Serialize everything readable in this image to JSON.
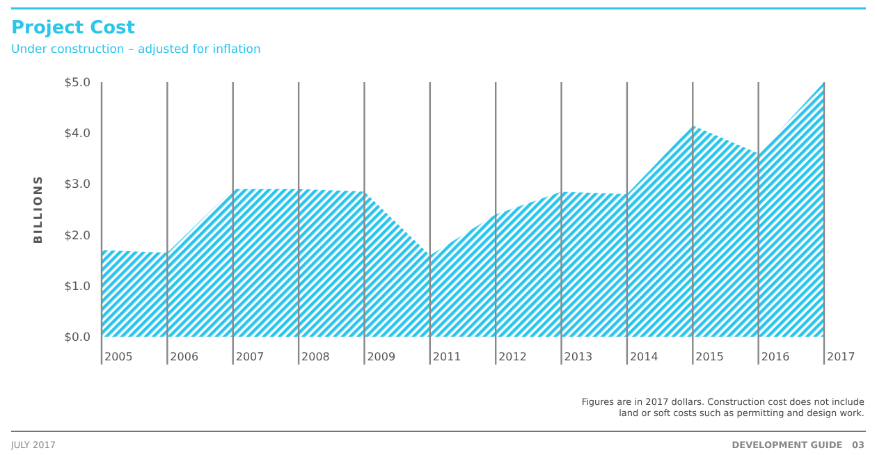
{
  "chart_data": {
    "type": "area",
    "title": "Project Cost",
    "subtitle": "Under construction – adjusted for inflation",
    "ylabel": "BILLIONS",
    "categories": [
      "2005",
      "2006",
      "2007",
      "2008",
      "2009",
      "2011",
      "2012",
      "2013",
      "2014",
      "2015",
      "2016",
      "2017"
    ],
    "values": [
      1.7,
      1.65,
      2.9,
      2.9,
      2.85,
      1.6,
      2.4,
      2.85,
      2.8,
      4.15,
      3.6,
      5.0
    ],
    "color": "#29c5ec",
    "ylim": [
      0,
      5
    ],
    "yticks": [
      {
        "value": 0,
        "label": "$0.0"
      },
      {
        "value": 1,
        "label": "$1.0"
      },
      {
        "value": 2,
        "label": "$2.0"
      },
      {
        "value": 3,
        "label": "$3.0"
      },
      {
        "value": 4,
        "label": "$4.0"
      },
      {
        "value": 5,
        "label": "$5.0"
      }
    ],
    "grid": "x",
    "annotations": [
      "Figures are in 2017 dollars. Construction cost does not include land or soft costs such as permitting and design work.",
      "JULY 2017",
      "DEVELOPMENT GUIDE   03"
    ]
  }
}
